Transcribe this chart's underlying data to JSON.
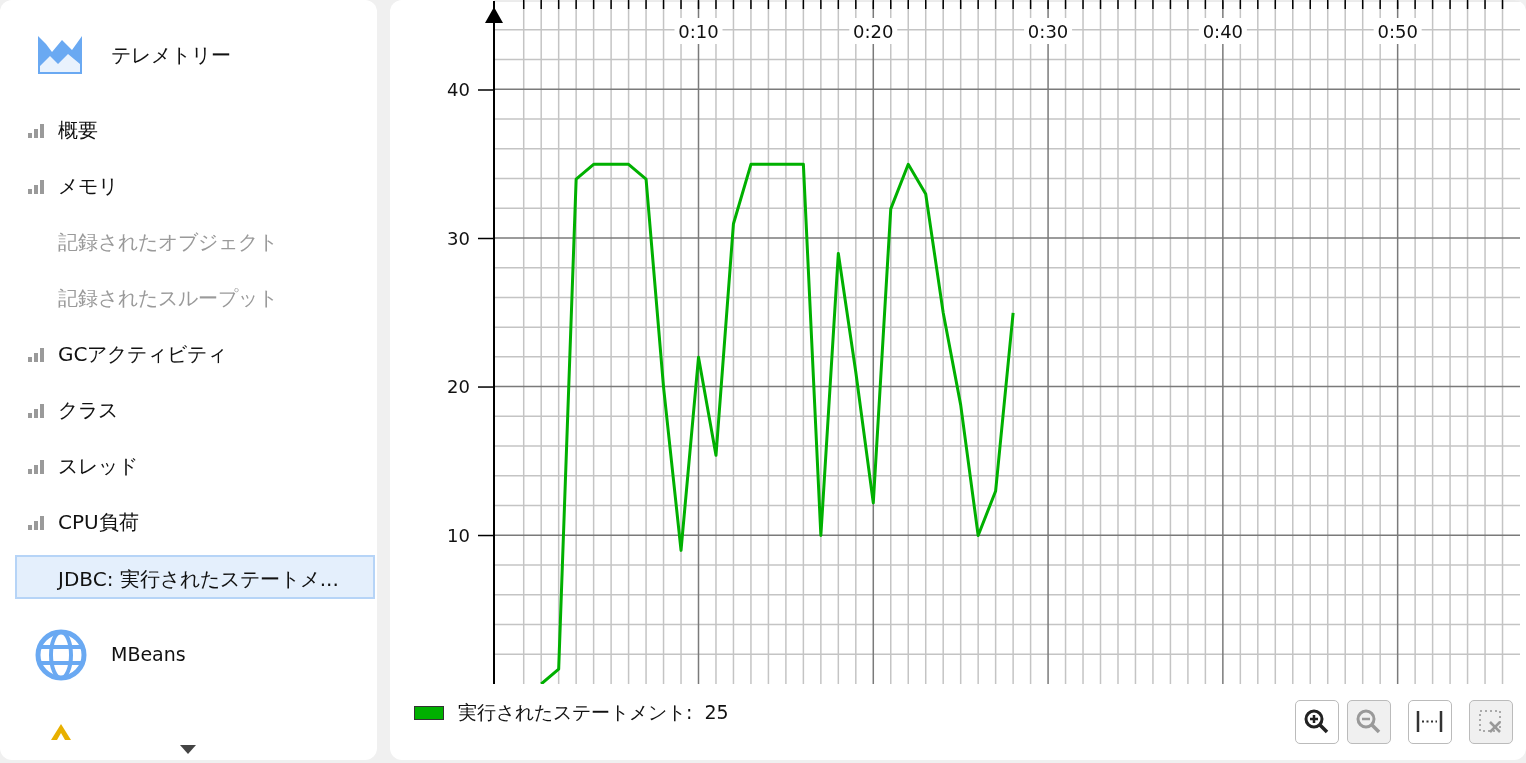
{
  "chart_data": {
    "type": "line",
    "x": [
      1,
      2,
      3,
      4,
      5,
      6,
      7,
      8,
      9,
      10,
      11,
      12,
      13,
      14,
      15,
      16,
      17,
      18,
      19,
      20,
      21,
      22,
      23,
      24,
      25,
      26,
      27,
      28
    ],
    "series": [
      {
        "name": "実行されたステートメント:  25",
        "color": "#00b000",
        "values": [
          0,
          1,
          34,
          35,
          35,
          35,
          34,
          20,
          9,
          22,
          15.4,
          31,
          35,
          35,
          35,
          35,
          10,
          29,
          21,
          12.2,
          32,
          35,
          33,
          25,
          18.8,
          10,
          13,
          25
        ]
      }
    ],
    "xlim": [
      -1.7,
      57
    ],
    "xticks": [
      {
        "value": 0,
        "label": null
      },
      {
        "value": 1,
        "label": null
      },
      {
        "value": 2,
        "label": null
      },
      {
        "value": 3,
        "label": null
      },
      {
        "value": 4,
        "label": null
      },
      {
        "value": 5,
        "label": null
      },
      {
        "value": 6,
        "label": null
      },
      {
        "value": 7,
        "label": null
      },
      {
        "value": 8,
        "label": null
      },
      {
        "value": 9,
        "label": null
      },
      {
        "value": 10,
        "label": "0:10"
      },
      {
        "value": 11,
        "label": null
      },
      {
        "value": 12,
        "label": null
      },
      {
        "value": 13,
        "label": null
      },
      {
        "value": 14,
        "label": null
      },
      {
        "value": 15,
        "label": null
      },
      {
        "value": 16,
        "label": null
      },
      {
        "value": 17,
        "label": null
      },
      {
        "value": 18,
        "label": null
      },
      {
        "value": 19,
        "label": null
      },
      {
        "value": 20,
        "label": "0:20"
      },
      {
        "value": 21,
        "label": null
      },
      {
        "value": 22,
        "label": null
      },
      {
        "value": 23,
        "label": null
      },
      {
        "value": 24,
        "label": null
      },
      {
        "value": 25,
        "label": null
      },
      {
        "value": 26,
        "label": null
      },
      {
        "value": 27,
        "label": null
      },
      {
        "value": 28,
        "label": null
      },
      {
        "value": 29,
        "label": null
      },
      {
        "value": 30,
        "label": "0:30"
      },
      {
        "value": 31,
        "label": null
      },
      {
        "value": 32,
        "label": null
      },
      {
        "value": 33,
        "label": null
      },
      {
        "value": 34,
        "label": null
      },
      {
        "value": 35,
        "label": null
      },
      {
        "value": 36,
        "label": null
      },
      {
        "value": 37,
        "label": null
      },
      {
        "value": 38,
        "label": null
      },
      {
        "value": 39,
        "label": null
      },
      {
        "value": 40,
        "label": "0:40"
      },
      {
        "value": 41,
        "label": null
      },
      {
        "value": 42,
        "label": null
      },
      {
        "value": 43,
        "label": null
      },
      {
        "value": 44,
        "label": null
      },
      {
        "value": 45,
        "label": null
      },
      {
        "value": 46,
        "label": null
      },
      {
        "value": 47,
        "label": null
      },
      {
        "value": 48,
        "label": null
      },
      {
        "value": 49,
        "label": null
      },
      {
        "value": 50,
        "label": "0:50"
      },
      {
        "value": 51,
        "label": null
      },
      {
        "value": 52,
        "label": null
      },
      {
        "value": 53,
        "label": null
      },
      {
        "value": 54,
        "label": null
      },
      {
        "value": 55,
        "label": null
      },
      {
        "value": 56,
        "label": null
      }
    ],
    "ylim": [
      0,
      46
    ],
    "yticks": [
      {
        "value": 2,
        "label": null
      },
      {
        "value": 4,
        "label": null
      },
      {
        "value": 6,
        "label": null
      },
      {
        "value": 8,
        "label": null
      },
      10,
      {
        "value": 12,
        "label": null
      },
      {
        "value": 14,
        "label": null
      },
      {
        "value": 16,
        "label": null
      },
      {
        "value": 18,
        "label": null
      },
      20,
      {
        "value": 22,
        "label": null
      },
      {
        "value": 24,
        "label": null
      },
      {
        "value": 26,
        "label": null
      },
      {
        "value": 28,
        "label": null
      },
      30,
      {
        "value": 32,
        "label": null
      },
      {
        "value": 34,
        "label": null
      },
      {
        "value": 36,
        "label": null
      },
      {
        "value": 38,
        "label": null
      },
      40,
      {
        "value": 42,
        "label": null
      },
      {
        "value": 44,
        "label": null
      }
    ],
    "grid": true,
    "legend": "bottom left",
    "marker": "none",
    "line_style": "solid",
    "annotations": [
      "テレメトリー",
      "概要",
      "メモリ",
      "記録されたオブジェクト",
      "記録されたスループット",
      "GCアクティビティ",
      "クラス",
      "スレッド",
      "CPU負荷",
      "JDBC: 実行されたステートメ...",
      "MBeans"
    ]
  }
}
